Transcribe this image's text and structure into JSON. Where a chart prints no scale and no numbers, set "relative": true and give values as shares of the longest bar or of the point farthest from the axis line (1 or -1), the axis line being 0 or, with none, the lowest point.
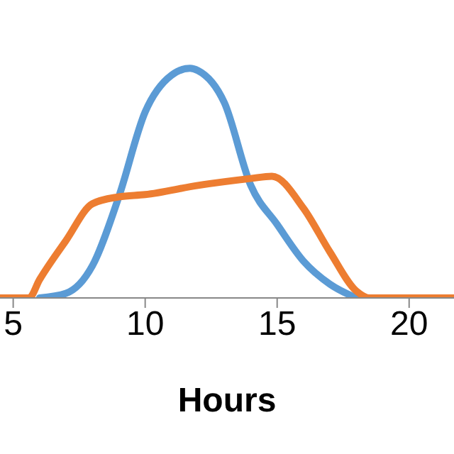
{
  "chart_data": {
    "type": "line",
    "xlabel": "Hours",
    "relative": true,
    "xlim": [
      4.5,
      21.7
    ],
    "xticks": [
      5,
      10,
      15,
      20
    ],
    "grid": false,
    "marker": "none",
    "line_style": "solid",
    "series": [
      {
        "color": "#5b9bd5",
        "x": [
          6,
          7,
          8,
          9,
          10,
          11,
          11.7,
          12,
          13,
          14,
          15,
          16,
          17,
          18
        ],
        "values": [
          0,
          0.02,
          0.14,
          0.44,
          0.81,
          0.97,
          1,
          0.99,
          0.85,
          0.49,
          0.32,
          0.16,
          0.06,
          0
        ]
      },
      {
        "color": "#ed7d31",
        "x": [
          4.5,
          5.6,
          6,
          7,
          8,
          9,
          10,
          12,
          14,
          14.8,
          16,
          17,
          18,
          18.5,
          19,
          20,
          21.7
        ],
        "values": [
          0,
          0,
          0.08,
          0.25,
          0.41,
          0.44,
          0.45,
          0.49,
          0.52,
          0.53,
          0.39,
          0.2,
          0.03,
          0,
          0,
          0,
          0
        ]
      }
    ]
  }
}
